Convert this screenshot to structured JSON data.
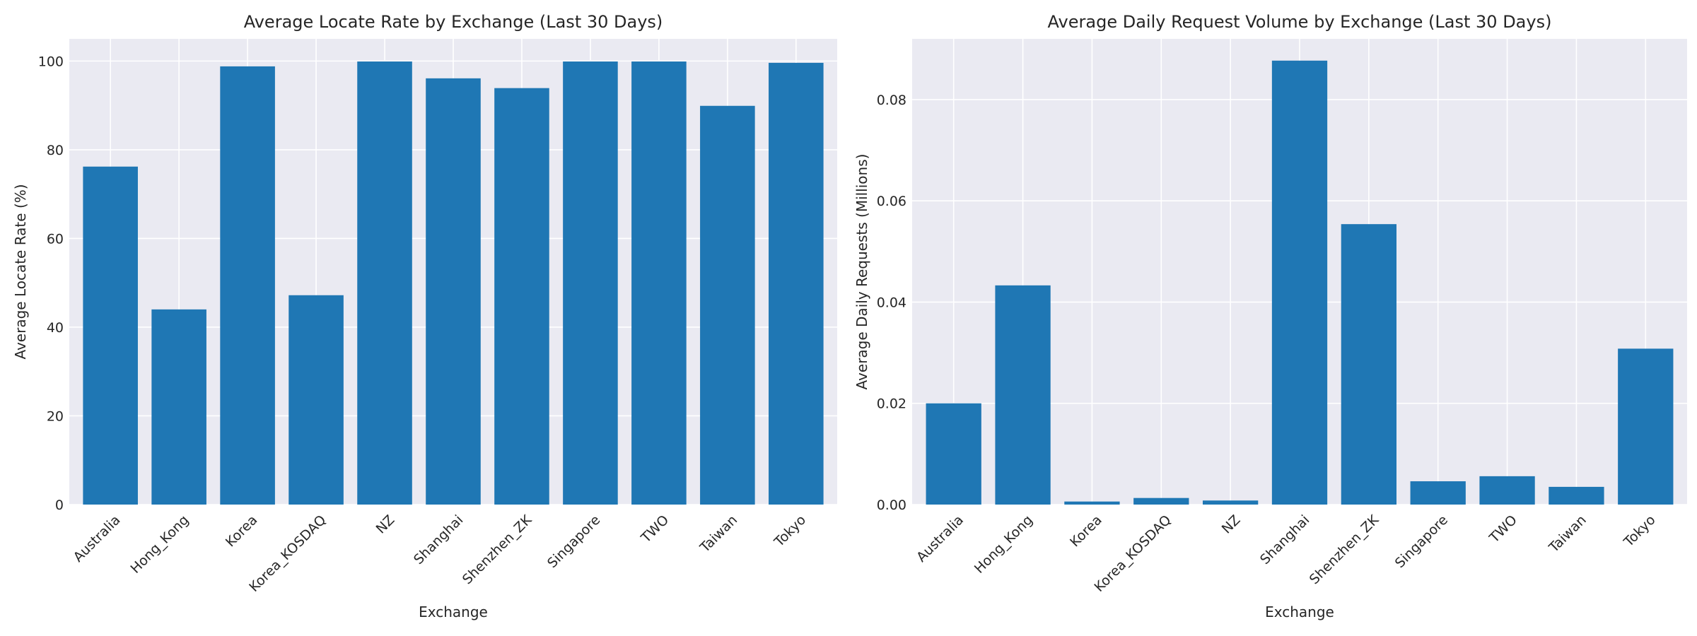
{
  "chart_data": [
    {
      "type": "bar",
      "title": "Average Locate Rate by Exchange (Last 30 Days)",
      "xlabel": "Exchange",
      "ylabel": "Average Locate Rate (%)",
      "categories": [
        "Australia",
        "Hong_Kong",
        "Korea",
        "Korea_KOSDAQ",
        "NZ",
        "Shanghai",
        "Shenzhen_ZK",
        "Singapore",
        "TWO",
        "Taiwan",
        "Tokyo"
      ],
      "values": [
        76.2,
        44.0,
        98.8,
        47.2,
        99.9,
        96.1,
        93.9,
        99.9,
        99.9,
        89.9,
        99.6
      ],
      "ylim": [
        0,
        105
      ],
      "yticks": [
        0,
        20,
        40,
        60,
        80,
        100
      ],
      "ytick_labels": [
        "0",
        "20",
        "40",
        "60",
        "80",
        "100"
      ],
      "bar_color": "#1f77b4",
      "background": "#eaeaf2",
      "grid": true
    },
    {
      "type": "bar",
      "title": "Average Daily Request Volume by Exchange (Last 30 Days)",
      "xlabel": "Exchange",
      "ylabel": "Average Daily Requests (Millions)",
      "categories": [
        "Australia",
        "Hong_Kong",
        "Korea",
        "Korea_KOSDAQ",
        "NZ",
        "Shanghai",
        "Shenzhen_ZK",
        "Singapore",
        "TWO",
        "Taiwan",
        "Tokyo"
      ],
      "values": [
        0.02,
        0.0433,
        0.0006,
        0.0013,
        0.0008,
        0.0877,
        0.0554,
        0.0046,
        0.0056,
        0.0035,
        0.0308
      ],
      "ylim": [
        0,
        0.092
      ],
      "yticks": [
        0,
        0.02,
        0.04,
        0.06,
        0.08
      ],
      "ytick_labels": [
        "0.00",
        "0.02",
        "0.04",
        "0.06",
        "0.08"
      ],
      "bar_color": "#1f77b4",
      "background": "#eaeaf2",
      "grid": true
    }
  ]
}
